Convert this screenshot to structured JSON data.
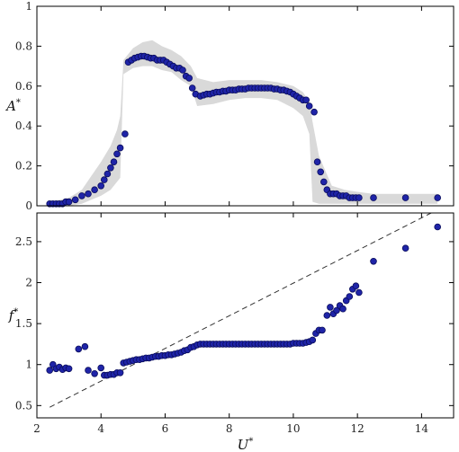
{
  "chart_data": [
    {
      "type": "scatter",
      "ylabel": "A",
      "ylabel_sup": "*",
      "xlabel": "",
      "xlim": [
        2,
        15
      ],
      "ylim": [
        0,
        1
      ],
      "xticks": [
        2,
        4,
        6,
        8,
        10,
        12,
        14
      ],
      "yticks": [
        0,
        0.2,
        0.4,
        0.6,
        0.8,
        1
      ],
      "ytick_labels": [
        "0",
        "0.2",
        "0.4",
        "0.6",
        "0.8",
        "1"
      ],
      "xtick_labels": [
        "",
        "",
        "",
        "",
        "",
        "",
        ""
      ],
      "grid": false,
      "marker_color": "#1f24a8",
      "band_color": "#d9d9d9",
      "band": {
        "x": [
          2.4,
          3.0,
          3.4,
          3.7,
          4.0,
          4.3,
          4.5,
          4.6,
          4.7,
          5.0,
          5.3,
          5.6,
          5.9,
          6.2,
          6.5,
          6.8,
          7.0,
          7.5,
          8.0,
          8.5,
          9.0,
          9.5,
          10.0,
          10.3,
          10.5,
          10.6,
          10.8,
          11.2,
          11.6,
          12.0,
          12.5,
          13.0,
          14.5
        ],
        "upper": [
          0.02,
          0.04,
          0.08,
          0.15,
          0.22,
          0.3,
          0.38,
          0.45,
          0.73,
          0.79,
          0.82,
          0.83,
          0.8,
          0.78,
          0.75,
          0.7,
          0.64,
          0.62,
          0.63,
          0.63,
          0.63,
          0.62,
          0.6,
          0.57,
          0.52,
          0.42,
          0.25,
          0.1,
          0.08,
          0.07,
          0.06,
          0.06,
          0.06
        ],
        "lower": [
          0.0,
          0.0,
          0.01,
          0.03,
          0.05,
          0.08,
          0.12,
          0.14,
          0.66,
          0.69,
          0.7,
          0.7,
          0.68,
          0.67,
          0.63,
          0.6,
          0.5,
          0.51,
          0.53,
          0.54,
          0.54,
          0.53,
          0.49,
          0.45,
          0.36,
          0.02,
          0.01,
          0.01,
          0.01,
          0.01,
          0.01,
          0.01,
          0.01
        ]
      },
      "x": [
        2.4,
        2.5,
        2.6,
        2.7,
        2.8,
        2.9,
        3.0,
        3.2,
        3.4,
        3.6,
        3.8,
        4.0,
        4.1,
        4.2,
        4.3,
        4.4,
        4.5,
        4.6,
        4.75,
        4.85,
        4.95,
        5.05,
        5.15,
        5.25,
        5.35,
        5.45,
        5.55,
        5.65,
        5.75,
        5.85,
        5.95,
        6.05,
        6.15,
        6.25,
        6.35,
        6.45,
        6.55,
        6.65,
        6.75,
        6.85,
        6.95,
        7.1,
        7.2,
        7.3,
        7.4,
        7.5,
        7.6,
        7.7,
        7.8,
        7.9,
        8.0,
        8.1,
        8.2,
        8.3,
        8.4,
        8.5,
        8.6,
        8.7,
        8.8,
        8.9,
        9.0,
        9.1,
        9.2,
        9.3,
        9.4,
        9.5,
        9.6,
        9.7,
        9.8,
        9.9,
        10.0,
        10.1,
        10.2,
        10.3,
        10.4,
        10.5,
        10.65,
        10.75,
        10.85,
        10.95,
        11.05,
        11.15,
        11.25,
        11.35,
        11.45,
        11.55,
        11.65,
        11.75,
        11.85,
        11.95,
        12.05,
        12.5,
        13.5,
        14.5
      ],
      "y": [
        0.01,
        0.01,
        0.01,
        0.01,
        0.01,
        0.02,
        0.02,
        0.03,
        0.05,
        0.06,
        0.08,
        0.1,
        0.13,
        0.16,
        0.19,
        0.22,
        0.26,
        0.29,
        0.36,
        0.72,
        0.73,
        0.74,
        0.745,
        0.75,
        0.75,
        0.745,
        0.74,
        0.74,
        0.73,
        0.73,
        0.73,
        0.72,
        0.71,
        0.7,
        0.69,
        0.69,
        0.68,
        0.65,
        0.64,
        0.59,
        0.56,
        0.55,
        0.555,
        0.56,
        0.56,
        0.565,
        0.57,
        0.57,
        0.575,
        0.575,
        0.58,
        0.58,
        0.58,
        0.585,
        0.585,
        0.585,
        0.59,
        0.59,
        0.59,
        0.59,
        0.59,
        0.59,
        0.59,
        0.59,
        0.585,
        0.585,
        0.58,
        0.58,
        0.575,
        0.57,
        0.56,
        0.55,
        0.54,
        0.53,
        0.53,
        0.5,
        0.47,
        0.22,
        0.17,
        0.12,
        0.08,
        0.06,
        0.06,
        0.06,
        0.05,
        0.05,
        0.05,
        0.04,
        0.04,
        0.04,
        0.04,
        0.04,
        0.04,
        0.04
      ]
    },
    {
      "type": "scatter",
      "ylabel": "f",
      "ylabel_sup": "*",
      "xlabel": "U",
      "xlabel_sup": "*",
      "xlim": [
        2,
        15
      ],
      "ylim": [
        0.35,
        2.85
      ],
      "xticks": [
        2,
        4,
        6,
        8,
        10,
        12,
        14
      ],
      "xtick_labels": [
        "2",
        "4",
        "6",
        "8",
        "10",
        "12",
        "14"
      ],
      "yticks": [
        0.5,
        1,
        1.5,
        2,
        2.5
      ],
      "ytick_labels": [
        "0.5",
        "1",
        "1.5",
        "2",
        "2.5"
      ],
      "grid": false,
      "marker_color": "#1f24a8",
      "reference_line": {
        "style": "dashed",
        "x": [
          2.4,
          14.3
        ],
        "y": [
          0.48,
          2.85
        ]
      },
      "x": [
        2.4,
        2.5,
        2.6,
        2.7,
        2.8,
        2.9,
        3.0,
        3.3,
        3.5,
        3.6,
        3.8,
        4.0,
        4.1,
        4.2,
        4.3,
        4.4,
        4.5,
        4.6,
        4.7,
        4.8,
        4.9,
        5.0,
        5.1,
        5.2,
        5.3,
        5.4,
        5.5,
        5.6,
        5.7,
        5.8,
        5.9,
        6.0,
        6.1,
        6.2,
        6.3,
        6.4,
        6.5,
        6.6,
        6.7,
        6.8,
        6.9,
        7.0,
        7.1,
        7.2,
        7.3,
        7.4,
        7.5,
        7.6,
        7.7,
        7.8,
        7.9,
        8.0,
        8.1,
        8.2,
        8.3,
        8.4,
        8.5,
        8.6,
        8.7,
        8.8,
        8.9,
        9.0,
        9.1,
        9.2,
        9.3,
        9.4,
        9.5,
        9.6,
        9.7,
        9.8,
        9.9,
        10.0,
        10.1,
        10.2,
        10.3,
        10.4,
        10.5,
        10.6,
        10.7,
        10.8,
        10.9,
        11.05,
        11.15,
        11.25,
        11.35,
        11.45,
        11.55,
        11.65,
        11.75,
        11.85,
        11.95,
        12.05,
        12.5,
        13.5,
        14.5
      ],
      "y": [
        0.93,
        1.0,
        0.95,
        0.97,
        0.94,
        0.96,
        0.95,
        1.19,
        1.22,
        0.93,
        0.89,
        0.96,
        0.87,
        0.87,
        0.88,
        0.88,
        0.9,
        0.9,
        1.02,
        1.03,
        1.04,
        1.05,
        1.06,
        1.06,
        1.07,
        1.08,
        1.08,
        1.09,
        1.1,
        1.1,
        1.11,
        1.11,
        1.12,
        1.12,
        1.13,
        1.14,
        1.15,
        1.17,
        1.18,
        1.21,
        1.22,
        1.24,
        1.25,
        1.25,
        1.25,
        1.25,
        1.25,
        1.25,
        1.25,
        1.25,
        1.25,
        1.25,
        1.25,
        1.25,
        1.25,
        1.25,
        1.25,
        1.25,
        1.25,
        1.25,
        1.25,
        1.25,
        1.25,
        1.25,
        1.25,
        1.25,
        1.25,
        1.25,
        1.25,
        1.25,
        1.25,
        1.26,
        1.26,
        1.26,
        1.26,
        1.27,
        1.28,
        1.3,
        1.38,
        1.42,
        1.42,
        1.6,
        1.7,
        1.62,
        1.66,
        1.72,
        1.68,
        1.78,
        1.83,
        1.92,
        1.96,
        1.88,
        2.26,
        2.42,
        2.68
      ]
    }
  ]
}
